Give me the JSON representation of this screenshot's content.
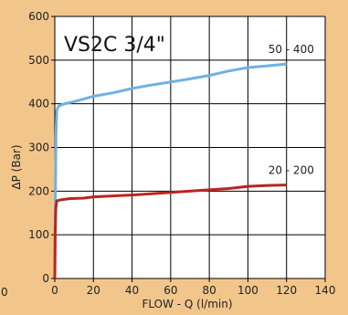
{
  "chart_data": {
    "type": "line",
    "title": "VS2C 3/4\"",
    "xlabel": "FLOW - Q (l/min)",
    "ylabel": "ΔP (Bar)",
    "xlim": [
      0,
      140
    ],
    "ylim": [
      0,
      600
    ],
    "xticks": [
      0,
      20,
      40,
      60,
      80,
      100,
      120,
      140
    ],
    "yticks": [
      0,
      100,
      200,
      300,
      400,
      500,
      600
    ],
    "grid": true,
    "edge_fragment": "0",
    "series": [
      {
        "name": "50 - 400",
        "color": "#6fb2e2",
        "points": [
          [
            0,
            0
          ],
          [
            0.3,
            180
          ],
          [
            0.6,
            330
          ],
          [
            1,
            385
          ],
          [
            2,
            395
          ],
          [
            5,
            400
          ],
          [
            10,
            405
          ],
          [
            20,
            417
          ],
          [
            30,
            425
          ],
          [
            40,
            435
          ],
          [
            50,
            443
          ],
          [
            60,
            450
          ],
          [
            70,
            457
          ],
          [
            80,
            465
          ],
          [
            90,
            475
          ],
          [
            100,
            483
          ],
          [
            110,
            487
          ],
          [
            120,
            491
          ]
        ]
      },
      {
        "name": "20 - 200",
        "color": "#b8261e",
        "points": [
          [
            0,
            0
          ],
          [
            0.2,
            100
          ],
          [
            0.5,
            160
          ],
          [
            1,
            178
          ],
          [
            3,
            180
          ],
          [
            8,
            183
          ],
          [
            15,
            184
          ],
          [
            20,
            187
          ],
          [
            40,
            191
          ],
          [
            60,
            197
          ],
          [
            80,
            203
          ],
          [
            90,
            206
          ],
          [
            100,
            211
          ],
          [
            110,
            213
          ],
          [
            120,
            214
          ]
        ]
      }
    ]
  }
}
